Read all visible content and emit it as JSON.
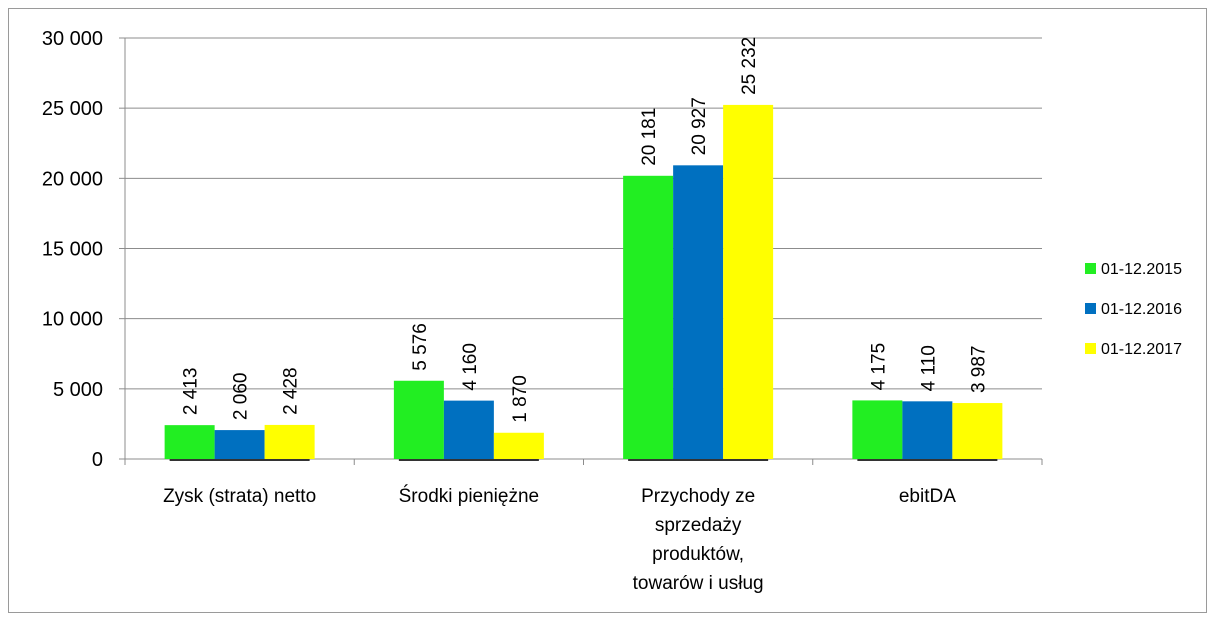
{
  "chart_data": {
    "type": "bar",
    "categories": [
      [
        "Zysk (strata) netto"
      ],
      [
        "Środki pieniężne"
      ],
      [
        "Przychody ze",
        "sprzedaży",
        "produktów,",
        "towarów i usług"
      ],
      [
        "ebitDA"
      ]
    ],
    "series": [
      {
        "name": "01-12.2015",
        "color": "#22ee22",
        "values": [
          2413,
          5576,
          20181,
          4175
        ],
        "labels": [
          "2 413",
          "5 576",
          "20 181",
          "4 175"
        ]
      },
      {
        "name": "01-12.2016",
        "color": "#0070c0",
        "values": [
          2060,
          4160,
          20927,
          4110
        ],
        "labels": [
          "2 060",
          "4 160",
          "20 927",
          "4 110"
        ]
      },
      {
        "name": "01-12.2017",
        "color": "#ffff00",
        "values": [
          2428,
          1870,
          25232,
          3987
        ],
        "labels": [
          "2 428",
          "1 870",
          "25 232",
          "3 987"
        ]
      }
    ],
    "ylim": [
      0,
      30000
    ],
    "yticks": [
      0,
      5000,
      10000,
      15000,
      20000,
      25000,
      30000
    ],
    "ytick_labels": [
      "0",
      "5 000",
      "10 000",
      "15 000",
      "20 000",
      "25 000",
      "30 000"
    ],
    "grid": true,
    "legend_position": "right"
  }
}
